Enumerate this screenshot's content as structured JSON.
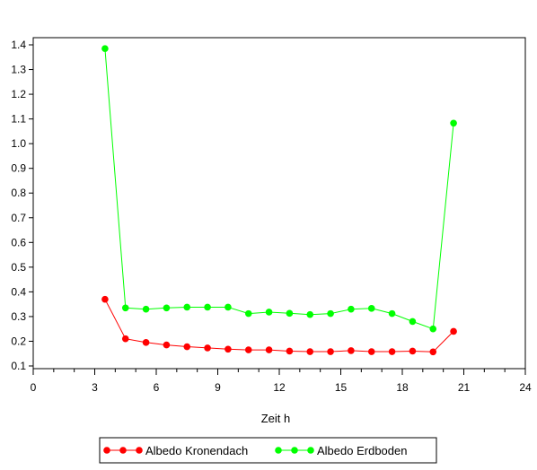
{
  "chart_data": {
    "type": "line",
    "title": "",
    "xlabel": "Zeit h",
    "ylabel": "",
    "xlim": [
      0,
      24
    ],
    "ylim": [
      0.1,
      1.4
    ],
    "x_ticks": [
      0,
      3,
      6,
      9,
      12,
      15,
      18,
      21,
      24
    ],
    "x_tick_labels": [
      "0",
      "3",
      "6",
      "9",
      "12",
      "15",
      "18",
      "21",
      "24"
    ],
    "x_minor_step": 1,
    "y_ticks": [
      0.1,
      0.2,
      0.3,
      0.4,
      0.5,
      0.6,
      0.7,
      0.8,
      0.9,
      1.0,
      1.1,
      1.2,
      1.3,
      1.4
    ],
    "y_tick_labels": [
      "0.1",
      "0.2",
      "0.3",
      "0.4",
      "0.5",
      "0.6",
      "0.7",
      "0.8",
      "0.9",
      "1.0",
      "1.1",
      "1.2",
      "1.3",
      "1.4"
    ],
    "grid": false,
    "legend_position": "bottom",
    "series": [
      {
        "name": "Albedo Kronendach",
        "color": "#ff0000",
        "x": [
          3.5,
          4.5,
          5.5,
          6.5,
          7.5,
          8.5,
          9.5,
          10.5,
          11.5,
          12.5,
          13.5,
          14.5,
          15.5,
          16.5,
          17.5,
          18.5,
          19.5,
          20.5
        ],
        "y": [
          0.37,
          0.21,
          0.195,
          0.185,
          0.178,
          0.173,
          0.168,
          0.165,
          0.165,
          0.16,
          0.158,
          0.158,
          0.162,
          0.158,
          0.158,
          0.16,
          0.157,
          0.24
        ]
      },
      {
        "name": "Albedo Erdboden",
        "color": "#00ff00",
        "x": [
          3.5,
          4.5,
          5.5,
          6.5,
          7.5,
          8.5,
          9.5,
          10.5,
          11.5,
          12.5,
          13.5,
          14.5,
          15.5,
          16.5,
          17.5,
          18.5,
          19.5,
          20.5
        ],
        "y": [
          1.385,
          0.335,
          0.33,
          0.335,
          0.338,
          0.338,
          0.338,
          0.312,
          0.318,
          0.313,
          0.308,
          0.312,
          0.33,
          0.333,
          0.312,
          0.28,
          0.25,
          1.083
        ]
      }
    ]
  }
}
